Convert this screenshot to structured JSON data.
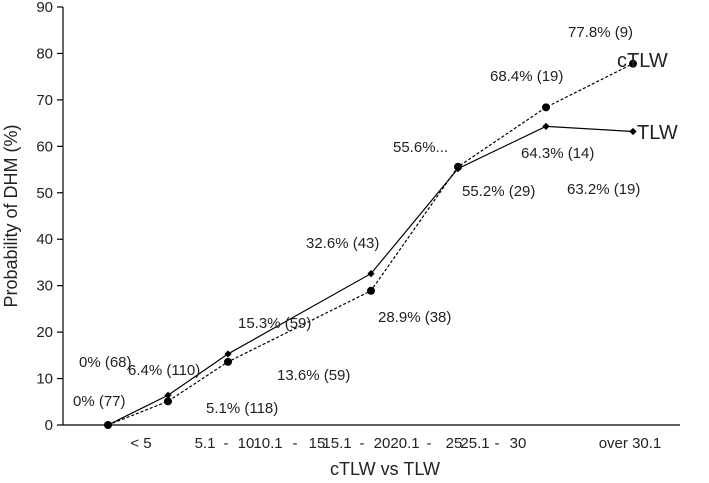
{
  "chart_data": {
    "type": "line",
    "title": "",
    "xlabel": "cTLW vs TLW",
    "ylabel": "Probability of DHM (%)",
    "ylim": [
      0,
      90
    ],
    "yticks": [
      0,
      10,
      20,
      30,
      40,
      50,
      60,
      70,
      80,
      90
    ],
    "categories": [
      "< 5",
      "5.1 - 10",
      "10.1 - 15",
      "15.1 - 20",
      "20.1 - 25",
      "25.1 - 30",
      "over 30.1"
    ],
    "grid": false,
    "legend": "series names labelled at line ends (right)",
    "series": [
      {
        "name": "cTLW",
        "line_style": "dotted",
        "marker": "circle",
        "values": [
          0,
          5.1,
          13.6,
          28.9,
          55.6,
          68.4,
          77.8
        ],
        "labels": [
          "0% (77)",
          "5.1% (118)",
          "13.6% (59)",
          "28.9% (38)",
          "55.6%...",
          "68.4% (19)",
          "77.8% (9)"
        ]
      },
      {
        "name": "TLW",
        "line_style": "solid",
        "marker": "diamond",
        "values": [
          0,
          6.4,
          15.3,
          32.6,
          55.2,
          64.3,
          63.2
        ],
        "labels": [
          "0% (68)",
          "6.4% (110)",
          "15.3% (59)",
          "32.6% (43)",
          "55.2% (29)",
          "64.3% (14)",
          "63.2% (19)"
        ]
      }
    ],
    "colors": {
      "line": "#000000",
      "text": "#222222"
    }
  }
}
